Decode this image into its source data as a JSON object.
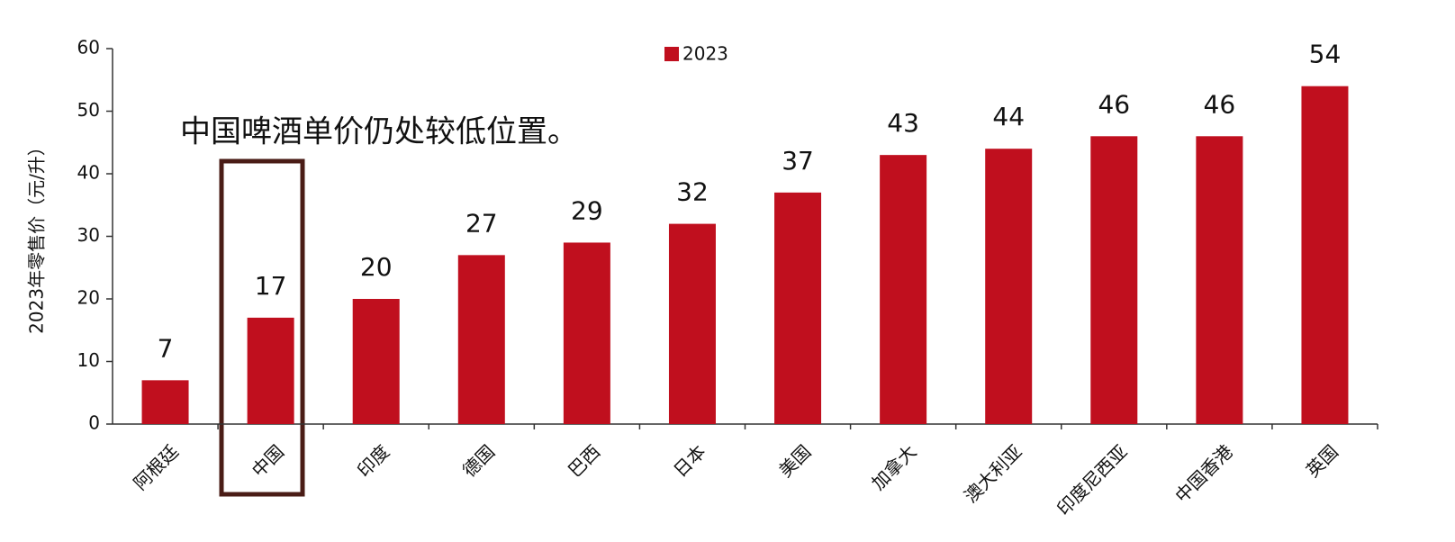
{
  "chart_data": {
    "type": "bar",
    "y_label": "2023年零售价（元/升）",
    "annotation": "中国啤酒单价仍处较低位置。",
    "categories": [
      "阿根廷",
      "中国",
      "印度",
      "德国",
      "巴西",
      "日本",
      "美国",
      "加拿大",
      "澳大利亚",
      "印度尼西亚",
      "中国香港",
      "英国"
    ],
    "series": [
      {
        "name": "2023",
        "color": "#c00f1e",
        "values": [
          7,
          17,
          20,
          27,
          29,
          32,
          37,
          43,
          44,
          46,
          46,
          54
        ]
      }
    ],
    "ylim": [
      0,
      60
    ],
    "yticks": [
      0,
      10,
      20,
      30,
      40,
      50,
      60
    ],
    "grid": false
  }
}
